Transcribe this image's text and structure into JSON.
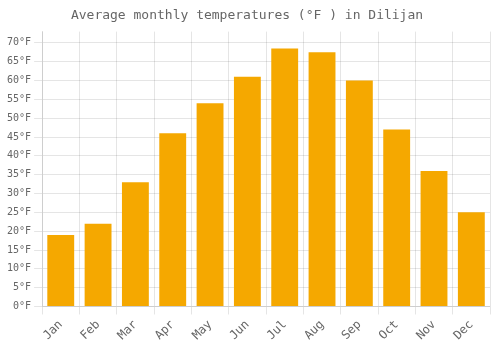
{
  "chart_data": {
    "type": "bar",
    "title": "Average monthly temperatures (°F ) in Dilijan",
    "categories": [
      "Jan",
      "Feb",
      "Mar",
      "Apr",
      "May",
      "Jun",
      "Jul",
      "Aug",
      "Sep",
      "Oct",
      "Nov",
      "Dec"
    ],
    "values": [
      19,
      22,
      33,
      46,
      54,
      61,
      68.5,
      67.5,
      60,
      47,
      36,
      25
    ],
    "color": "#F5A800",
    "ylim": [
      0,
      73
    ],
    "yticks": [
      {
        "value": 0,
        "label": "0°F"
      },
      {
        "value": 5,
        "label": "5°F"
      },
      {
        "value": 10,
        "label": "10°F"
      },
      {
        "value": 15,
        "label": "15°F"
      },
      {
        "value": 20,
        "label": "20°F"
      },
      {
        "value": 25,
        "label": "25°F"
      },
      {
        "value": 30,
        "label": "30°F"
      },
      {
        "value": 35,
        "label": "35°F"
      },
      {
        "value": 40,
        "label": "40°F"
      },
      {
        "value": 45,
        "label": "45°F"
      },
      {
        "value": 50,
        "label": "50°F"
      },
      {
        "value": 55,
        "label": "55°F"
      },
      {
        "value": 60,
        "label": "60°F"
      },
      {
        "value": 65,
        "label": "65°F"
      },
      {
        "value": 70,
        "label": "70°F"
      }
    ],
    "grid": true
  }
}
